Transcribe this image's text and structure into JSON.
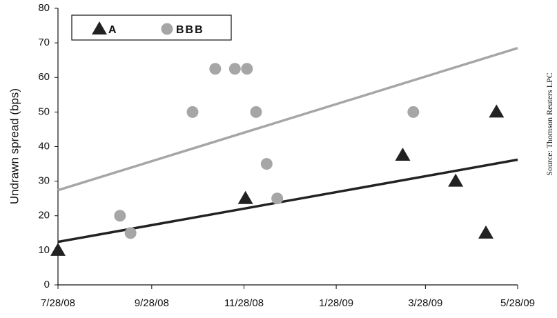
{
  "chart_data": {
    "type": "scatter",
    "y_label": "Undrawn spread (bps)",
    "source": "Source: Thomson Reuters LPC",
    "xlim": [
      "2008-07-28",
      "2009-05-28"
    ],
    "xticks": [
      {
        "value": "2008-07-28",
        "label": "7/28/08"
      },
      {
        "value": "2008-09-28",
        "label": "9/28/08"
      },
      {
        "value": "2008-11-28",
        "label": "11/28/08"
      },
      {
        "value": "2009-01-28",
        "label": "1/28/09"
      },
      {
        "value": "2009-03-28",
        "label": "3/28/09"
      },
      {
        "value": "2009-05-28",
        "label": "5/28/09"
      }
    ],
    "ylim": [
      0,
      80
    ],
    "yticks": [
      0,
      10,
      20,
      30,
      40,
      50,
      60,
      70,
      80
    ],
    "trendline": true,
    "legend": "top-left",
    "series": [
      {
        "name": "A",
        "marker": "triangle",
        "color": "#222222",
        "x": [
          "2008-07-28",
          "2008-11-29",
          "2009-03-13",
          "2009-04-17",
          "2009-05-07",
          "2009-05-14"
        ],
        "values": [
          10,
          25,
          37.5,
          30,
          15,
          50
        ]
      },
      {
        "name": "BBB",
        "marker": "circle",
        "color": "#a6a6a6",
        "x": [
          "2008-09-07",
          "2008-09-14",
          "2008-10-25",
          "2008-11-09",
          "2008-11-22",
          "2008-11-30",
          "2008-12-06",
          "2008-12-13",
          "2008-12-20",
          "2009-03-20"
        ],
        "values": [
          20,
          15,
          50,
          62.5,
          62.5,
          62.5,
          50,
          35,
          25,
          50
        ]
      }
    ]
  }
}
